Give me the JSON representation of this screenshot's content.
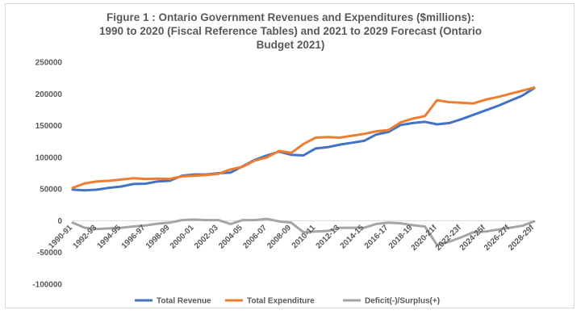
{
  "chart_data": {
    "type": "line",
    "title_lines": [
      "Figure 1 : Ontario Government Revenues and Expenditures ($millions):",
      "1990 to 2020 (Fiscal Reference Tables) and 2021 to 2029 Forecast (Ontario",
      "Budget 2021)"
    ],
    "xlabel": "",
    "ylabel": "",
    "ylim": [
      -100000,
      250000
    ],
    "yticks": [
      -100000,
      -50000,
      0,
      50000,
      100000,
      150000,
      200000,
      250000
    ],
    "grid": false,
    "legend_position": "bottom",
    "x": [
      "1990-91",
      "1991-92",
      "1992-93",
      "1993-94",
      "1994-95",
      "1995-96",
      "1996-97",
      "1997-98",
      "1998-99",
      "1999-00",
      "2000-01",
      "2001-02",
      "2002-03",
      "2003-04",
      "2004-05",
      "2005-06",
      "2006-07",
      "2007-08",
      "2008-09",
      "2009-10",
      "2010-11",
      "2011-12",
      "2012-13",
      "2013-14",
      "2014-15",
      "2015-16",
      "2016-17",
      "2017-18",
      "2018-19",
      "2019-20",
      "2020-21f",
      "2021-22f",
      "2022-23f",
      "2023-24f",
      "2024-25f",
      "2025-26f",
      "2026-27f",
      "2027-28f",
      "2028-29f"
    ],
    "x_tick_labels": [
      "1990-91",
      "1992-93",
      "1994-95",
      "1996-97",
      "1998-99",
      "2000-01",
      "2002-03",
      "2004-05",
      "2006-07",
      "2008-09",
      "2010-11",
      "2012-13",
      "2014-15",
      "2016-17",
      "2018-19",
      "2020-21f",
      "2022-23f",
      "2024-25f",
      "2026-27f",
      "2028-29f"
    ],
    "series": [
      {
        "name": "Total Revenue",
        "color": "#4472c4",
        "values": [
          49000,
          48000,
          49000,
          52000,
          54000,
          58000,
          58500,
          62000,
          63000,
          71000,
          73000,
          73000,
          75000,
          76000,
          86000,
          96000,
          103000,
          109000,
          104000,
          103000,
          114000,
          116000,
          120000,
          123000,
          126000,
          136000,
          140000,
          151000,
          154000,
          156000,
          152000,
          154000,
          160000,
          167000,
          174000,
          181000,
          189000,
          197000,
          209000
        ]
      },
      {
        "name": "Total Expenditure",
        "color": "#ed7d31",
        "values": [
          52000,
          59000,
          62000,
          63000,
          65000,
          67000,
          66000,
          66500,
          66000,
          70000,
          71000,
          72000,
          74000,
          81000,
          85000,
          95000,
          100000,
          110000,
          107000,
          121000,
          131000,
          132000,
          131000,
          134000,
          137000,
          141000,
          143000,
          155000,
          161000,
          165000,
          190000,
          187000,
          186000,
          185000,
          191000,
          195000,
          200000,
          205000,
          210000
        ]
      },
      {
        "name": "Deficit(-)/Surplus(+)",
        "color": "#a5a5a5",
        "values": [
          -3000,
          -11000,
          -13000,
          -12000,
          -11000,
          -9000,
          -7500,
          -4500,
          -3000,
          1000,
          2000,
          1000,
          1000,
          -5000,
          1000,
          1000,
          3000,
          -1000,
          -3000,
          -18000,
          -17000,
          -16000,
          -11000,
          -11000,
          -11000,
          -5000,
          -3000,
          -4000,
          -7000,
          -9000,
          -38000,
          -33000,
          -26000,
          -18000,
          -17000,
          -14000,
          -11000,
          -8000,
          -1000
        ]
      }
    ]
  }
}
